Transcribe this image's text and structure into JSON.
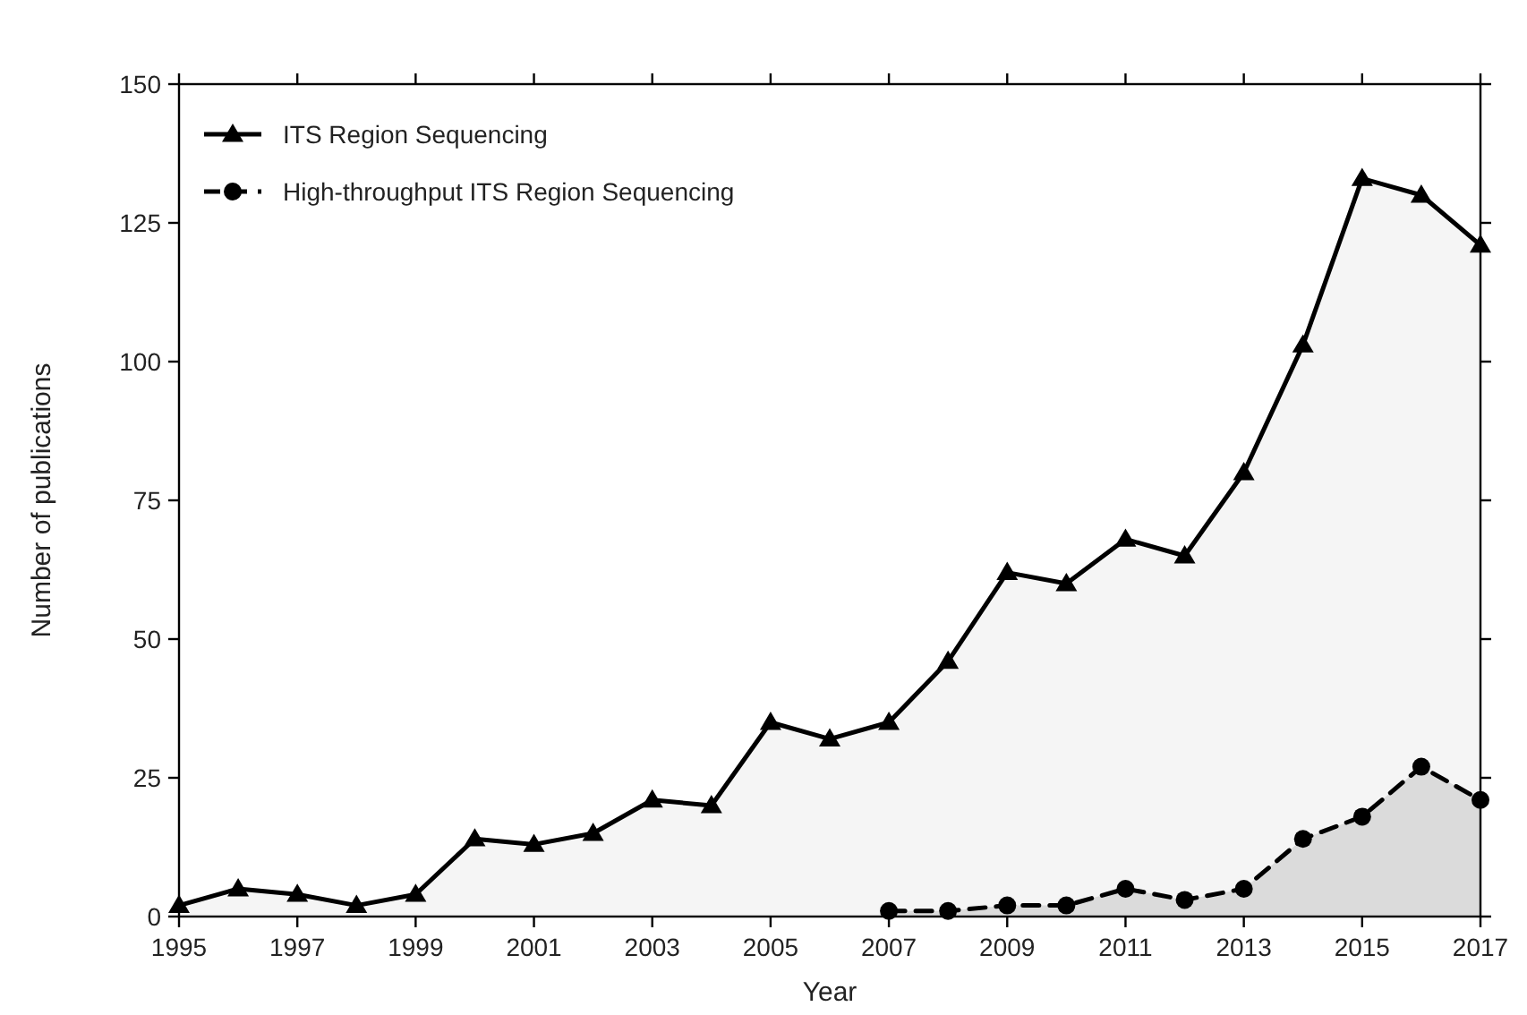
{
  "chart_data": {
    "type": "area",
    "xlabel": "Year",
    "ylabel": "Number of publications",
    "x": [
      1995,
      1996,
      1997,
      1998,
      1999,
      2000,
      2001,
      2002,
      2003,
      2004,
      2005,
      2006,
      2007,
      2008,
      2009,
      2010,
      2011,
      2012,
      2013,
      2014,
      2015,
      2016,
      2017
    ],
    "series": [
      {
        "name": "ITS Region Sequencing",
        "color": "#000000",
        "marker": "triangle",
        "line_style": "solid",
        "values": [
          2,
          5,
          4,
          2,
          4,
          14,
          13,
          15,
          21,
          20,
          35,
          32,
          35,
          46,
          62,
          60,
          68,
          65,
          80,
          103,
          133,
          130,
          121
        ]
      },
      {
        "name": "High-throughput ITS Region Sequencing",
        "color": "#000000",
        "marker": "circle",
        "line_style": "dashed",
        "x": [
          2007,
          2008,
          2009,
          2010,
          2011,
          2012,
          2013,
          2014,
          2015,
          2016,
          2017
        ],
        "values": [
          1,
          1,
          2,
          2,
          5,
          3,
          5,
          14,
          18,
          27,
          21
        ]
      }
    ],
    "xlim": [
      1995,
      2017
    ],
    "xticks": [
      1995,
      1997,
      1999,
      2001,
      2003,
      2005,
      2007,
      2009,
      2011,
      2013,
      2015,
      2017
    ],
    "ylim": [
      0,
      150
    ],
    "yticks": [
      0,
      25,
      50,
      75,
      100,
      125,
      150
    ],
    "grid": false,
    "legend": "top left"
  }
}
